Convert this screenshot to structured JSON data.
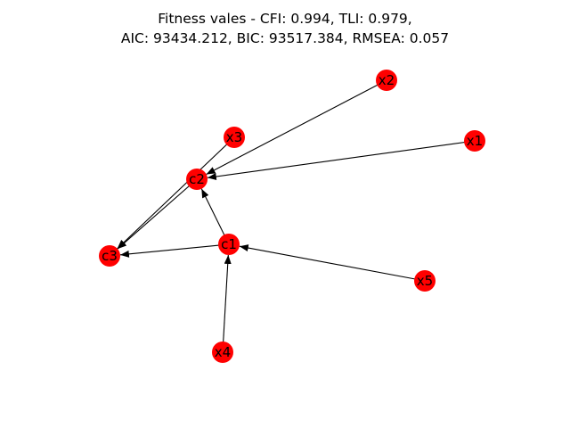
{
  "title_line1": "Fitness vales - CFI: 0.994, TLI: 0.979,",
  "title_line2": "AIC: 93434.212, BIC: 93517.384, RMSEA: 0.057",
  "colors": {
    "node_fill": "#ff0000",
    "edge": "#000000",
    "label": "#000000"
  },
  "nodes": [
    {
      "id": "x2",
      "label": "x2"
    },
    {
      "id": "x3",
      "label": "x3"
    },
    {
      "id": "x1",
      "label": "x1"
    },
    {
      "id": "c2",
      "label": "c2"
    },
    {
      "id": "c1",
      "label": "c1"
    },
    {
      "id": "c3",
      "label": "c3"
    },
    {
      "id": "x5",
      "label": "x5"
    },
    {
      "id": "x4",
      "label": "x4"
    }
  ],
  "edges": [
    {
      "from": "x2",
      "to": "c2"
    },
    {
      "from": "x1",
      "to": "c2"
    },
    {
      "from": "x3",
      "to": "c3"
    },
    {
      "from": "c2",
      "to": "c3"
    },
    {
      "from": "c1",
      "to": "c2"
    },
    {
      "from": "c1",
      "to": "c3"
    },
    {
      "from": "x5",
      "to": "c1"
    },
    {
      "from": "x4",
      "to": "c1"
    }
  ]
}
